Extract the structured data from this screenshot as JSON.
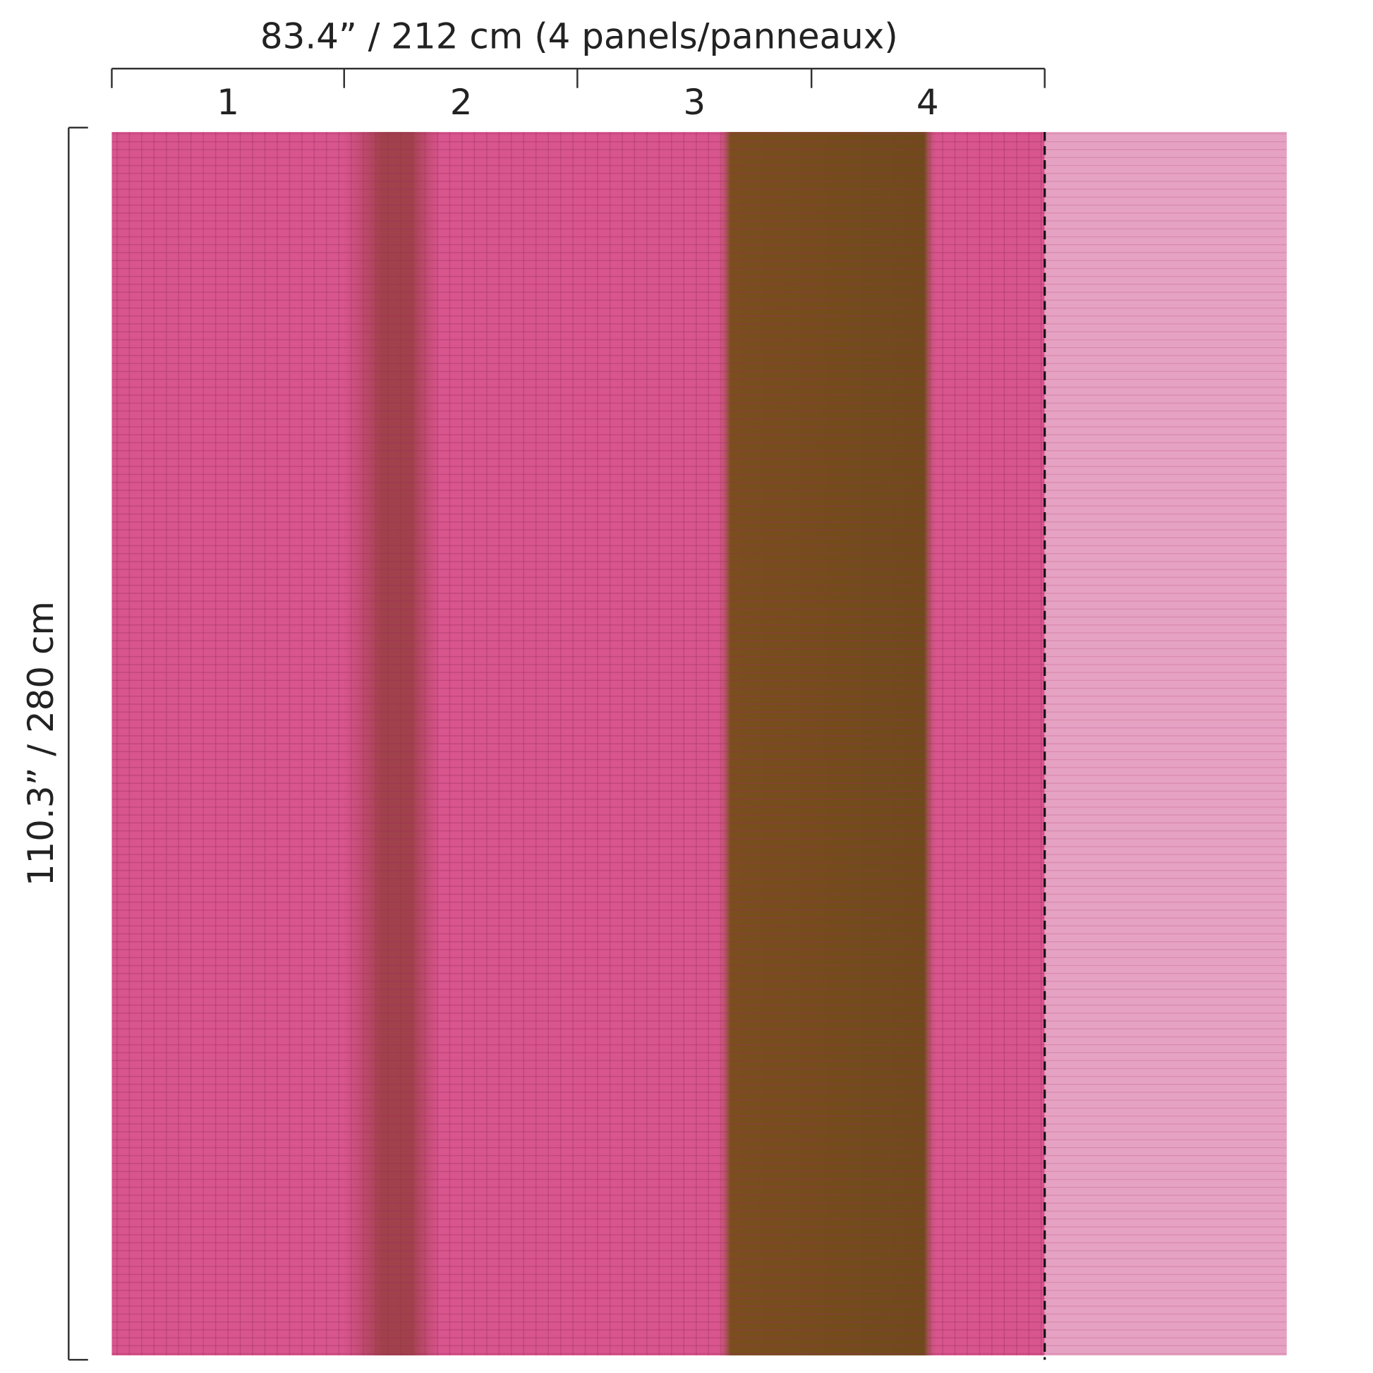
{
  "dimensions": {
    "width_label": "83.4” / 212 cm (4 panels/panneaux)",
    "height_label": "110.3” / 280 cm",
    "panels": [
      "1",
      "2",
      "3",
      "4"
    ]
  }
}
